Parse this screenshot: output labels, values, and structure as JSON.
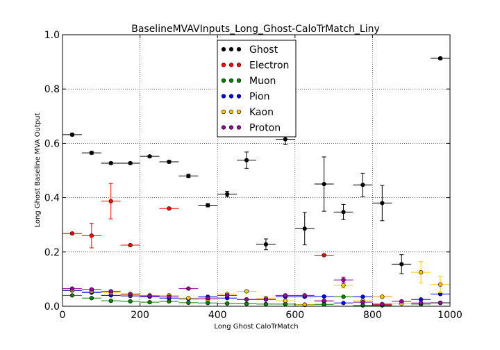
{
  "chart_data": {
    "type": "scatter",
    "title": "BaselineMVAVInputs_Long_Ghost-CaloTrMatch_Liny",
    "xlabel": "Long Ghost CaloTrMatch",
    "ylabel": "Long Ghost Baseline MVA Output",
    "xlim": [
      0,
      1000
    ],
    "ylim": [
      0,
      1.0
    ],
    "x_ticks": [
      "0",
      "200",
      "400",
      "600",
      "800",
      "1000"
    ],
    "y_ticks": [
      "0.0",
      "0.2",
      "0.4",
      "0.6",
      "0.8",
      "1.0"
    ],
    "x_tick_values": [
      0,
      200,
      400,
      600,
      800,
      1000
    ],
    "y_tick_values": [
      0,
      0.2,
      0.4,
      0.6,
      0.8,
      1.0
    ],
    "grid": true,
    "legend_position": "top-center",
    "bin_half_width": 25,
    "series": [
      {
        "name": "Ghost",
        "color": "#000000",
        "points": [
          {
            "x": 25,
            "y": 0.632,
            "err": 0.005
          },
          {
            "x": 75,
            "y": 0.565,
            "err": 0.005
          },
          {
            "x": 125,
            "y": 0.527,
            "err": 0.004
          },
          {
            "x": 175,
            "y": 0.527,
            "err": 0.004
          },
          {
            "x": 225,
            "y": 0.552,
            "err": 0.004
          },
          {
            "x": 275,
            "y": 0.532,
            "err": 0.005
          },
          {
            "x": 325,
            "y": 0.48,
            "err": 0.006
          },
          {
            "x": 375,
            "y": 0.372,
            "err": 0.006
          },
          {
            "x": 425,
            "y": 0.413,
            "err": 0.01
          },
          {
            "x": 475,
            "y": 0.538,
            "err": 0.03
          },
          {
            "x": 525,
            "y": 0.228,
            "err": 0.02
          },
          {
            "x": 575,
            "y": 0.615,
            "err": 0.02
          },
          {
            "x": 625,
            "y": 0.286,
            "err": 0.06
          },
          {
            "x": 675,
            "y": 0.45,
            "err": 0.1
          },
          {
            "x": 725,
            "y": 0.347,
            "err": 0.028
          },
          {
            "x": 775,
            "y": 0.447,
            "err": 0.043
          },
          {
            "x": 825,
            "y": 0.38,
            "err": 0.065
          },
          {
            "x": 875,
            "y": 0.155,
            "err": 0.035
          },
          {
            "x": 975,
            "y": 0.913,
            "err": 0.004
          }
        ]
      },
      {
        "name": "Electron",
        "color": "#ff0000",
        "points": [
          {
            "x": 25,
            "y": 0.268,
            "err": 0.003
          },
          {
            "x": 75,
            "y": 0.26,
            "err": 0.045
          },
          {
            "x": 125,
            "y": 0.387,
            "err": 0.065
          },
          {
            "x": 175,
            "y": 0.225,
            "err": 0.003
          },
          {
            "x": 275,
            "y": 0.36,
            "err": 0.003
          },
          {
            "x": 675,
            "y": 0.188,
            "err": 0.003
          },
          {
            "x": 825,
            "y": 0.005,
            "err": 0.003
          }
        ]
      },
      {
        "name": "Muon",
        "color": "#008000",
        "points": [
          {
            "x": 25,
            "y": 0.04,
            "err": 0.002
          },
          {
            "x": 75,
            "y": 0.03,
            "err": 0.002
          },
          {
            "x": 125,
            "y": 0.02,
            "err": 0.002
          },
          {
            "x": 175,
            "y": 0.018,
            "err": 0.002
          },
          {
            "x": 225,
            "y": 0.015,
            "err": 0.002
          },
          {
            "x": 275,
            "y": 0.018,
            "err": 0.002
          },
          {
            "x": 325,
            "y": 0.013,
            "err": 0.002
          },
          {
            "x": 375,
            "y": 0.012,
            "err": 0.002
          },
          {
            "x": 425,
            "y": 0.01,
            "err": 0.002
          },
          {
            "x": 475,
            "y": 0.009,
            "err": 0.002
          },
          {
            "x": 525,
            "y": 0.008,
            "err": 0.002
          },
          {
            "x": 575,
            "y": 0.008,
            "err": 0.002
          },
          {
            "x": 625,
            "y": 0.006,
            "err": 0.002
          },
          {
            "x": 675,
            "y": 0.007,
            "err": 0.002
          },
          {
            "x": 725,
            "y": 0.035,
            "err": 0.002
          },
          {
            "x": 775,
            "y": 0.003,
            "err": 0.002
          },
          {
            "x": 825,
            "y": 0.003,
            "err": 0.002
          },
          {
            "x": 925,
            "y": 0.008,
            "err": 0.002
          },
          {
            "x": 975,
            "y": 0.013,
            "err": 0.002
          }
        ]
      },
      {
        "name": "Pion",
        "color": "#0000ff",
        "points": [
          {
            "x": 25,
            "y": 0.058,
            "err": 0.002
          },
          {
            "x": 75,
            "y": 0.05,
            "err": 0.002
          },
          {
            "x": 125,
            "y": 0.04,
            "err": 0.002
          },
          {
            "x": 175,
            "y": 0.038,
            "err": 0.002
          },
          {
            "x": 225,
            "y": 0.035,
            "err": 0.002
          },
          {
            "x": 275,
            "y": 0.03,
            "err": 0.002
          },
          {
            "x": 325,
            "y": 0.027,
            "err": 0.002
          },
          {
            "x": 375,
            "y": 0.035,
            "err": 0.002
          },
          {
            "x": 425,
            "y": 0.03,
            "err": 0.002
          },
          {
            "x": 475,
            "y": 0.025,
            "err": 0.002
          },
          {
            "x": 525,
            "y": 0.025,
            "err": 0.002
          },
          {
            "x": 575,
            "y": 0.035,
            "err": 0.002
          },
          {
            "x": 625,
            "y": 0.035,
            "err": 0.002
          },
          {
            "x": 675,
            "y": 0.036,
            "err": 0.002
          },
          {
            "x": 725,
            "y": 0.012,
            "err": 0.002
          },
          {
            "x": 775,
            "y": 0.035,
            "err": 0.002
          },
          {
            "x": 825,
            "y": 0.035,
            "err": 0.002
          },
          {
            "x": 925,
            "y": 0.025,
            "err": 0.002
          },
          {
            "x": 975,
            "y": 0.045,
            "err": 0.002
          }
        ]
      },
      {
        "name": "Kaon",
        "color": "#ffcc00",
        "points": [
          {
            "x": 25,
            "y": 0.06,
            "err": 0.003
          },
          {
            "x": 75,
            "y": 0.055,
            "err": 0.003
          },
          {
            "x": 125,
            "y": 0.05,
            "err": 0.003
          },
          {
            "x": 175,
            "y": 0.042,
            "err": 0.003
          },
          {
            "x": 225,
            "y": 0.04,
            "err": 0.003
          },
          {
            "x": 275,
            "y": 0.04,
            "err": 0.003
          },
          {
            "x": 325,
            "y": 0.03,
            "err": 0.003
          },
          {
            "x": 375,
            "y": 0.025,
            "err": 0.003
          },
          {
            "x": 425,
            "y": 0.045,
            "err": 0.003
          },
          {
            "x": 475,
            "y": 0.055,
            "err": 0.003
          },
          {
            "x": 525,
            "y": 0.03,
            "err": 0.003
          },
          {
            "x": 575,
            "y": 0.02,
            "err": 0.003
          },
          {
            "x": 625,
            "y": 0.005,
            "err": 0.003
          },
          {
            "x": 675,
            "y": 0.018,
            "err": 0.003
          },
          {
            "x": 725,
            "y": 0.077,
            "err": 0.01
          },
          {
            "x": 775,
            "y": 0.02,
            "err": 0.003
          },
          {
            "x": 825,
            "y": 0.035,
            "err": 0.003
          },
          {
            "x": 875,
            "y": 0.01,
            "err": 0.003
          },
          {
            "x": 925,
            "y": 0.125,
            "err": 0.04
          },
          {
            "x": 975,
            "y": 0.08,
            "err": 0.03
          }
        ]
      },
      {
        "name": "Proton",
        "color": "#990099",
        "points": [
          {
            "x": 25,
            "y": 0.065,
            "err": 0.003
          },
          {
            "x": 75,
            "y": 0.062,
            "err": 0.003
          },
          {
            "x": 125,
            "y": 0.055,
            "err": 0.003
          },
          {
            "x": 175,
            "y": 0.045,
            "err": 0.003
          },
          {
            "x": 225,
            "y": 0.038,
            "err": 0.003
          },
          {
            "x": 275,
            "y": 0.035,
            "err": 0.003
          },
          {
            "x": 325,
            "y": 0.065,
            "err": 0.003
          },
          {
            "x": 375,
            "y": 0.03,
            "err": 0.003
          },
          {
            "x": 425,
            "y": 0.04,
            "err": 0.003
          },
          {
            "x": 475,
            "y": 0.025,
            "err": 0.003
          },
          {
            "x": 525,
            "y": 0.025,
            "err": 0.003
          },
          {
            "x": 575,
            "y": 0.04,
            "err": 0.003
          },
          {
            "x": 625,
            "y": 0.04,
            "err": 0.003
          },
          {
            "x": 675,
            "y": 0.02,
            "err": 0.003
          },
          {
            "x": 725,
            "y": 0.097,
            "err": 0.01
          },
          {
            "x": 775,
            "y": 0.015,
            "err": 0.003
          },
          {
            "x": 825,
            "y": 0.008,
            "err": 0.003
          },
          {
            "x": 875,
            "y": 0.018,
            "err": 0.003
          },
          {
            "x": 925,
            "y": 0.012,
            "err": 0.003
          },
          {
            "x": 975,
            "y": 0.012,
            "err": 0.003
          }
        ]
      }
    ]
  }
}
